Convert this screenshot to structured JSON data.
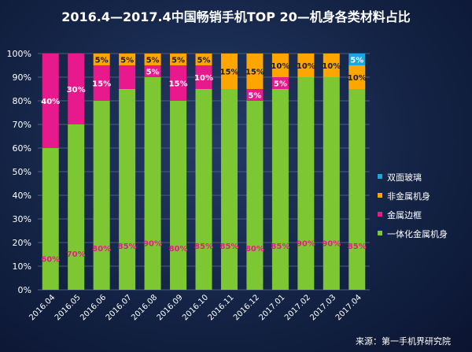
{
  "colors": {
    "双面玻璃": "#1aa6e0",
    "非金属机身": "#ffa500",
    "金属边框": "#e8198c",
    "一体化金属机身": "#7dc832",
    "gridline": "#4a5c82"
  },
  "chart_data": {
    "type": "bar",
    "stacked": true,
    "title": "2016.4—2017.4中国畅销手机TOP 20—机身各类材料占比",
    "categories": [
      "2016.04",
      "2016.05",
      "2016.06",
      "2016.07",
      "2016.08",
      "2016.09",
      "2016.10",
      "2016.11",
      "2016.12",
      "2017.01",
      "2017.02",
      "2017.03",
      "2017.04"
    ],
    "series": [
      {
        "name": "一体化金属机身",
        "values": [
          60,
          70,
          80,
          85,
          90,
          80,
          85,
          85,
          80,
          85,
          90,
          90,
          85
        ],
        "labels": [
          "60%",
          "70%",
          "80%",
          "85%",
          "90%",
          "80%",
          "85%",
          "85%",
          "80%",
          "85%",
          "90%",
          "90%",
          "85%"
        ]
      },
      {
        "name": "金属边框",
        "values": [
          40,
          30,
          15,
          10,
          5,
          15,
          10,
          0,
          5,
          5,
          0,
          0,
          0
        ],
        "labels": [
          "40%",
          "30%",
          "15%",
          "",
          "5%",
          "15%",
          "10%",
          "",
          "5%",
          "5%",
          "",
          "",
          ""
        ]
      },
      {
        "name": "非金属机身",
        "values": [
          0,
          0,
          5,
          5,
          5,
          5,
          5,
          15,
          15,
          10,
          10,
          10,
          10
        ],
        "labels": [
          "",
          "",
          "5%",
          "5%",
          "5%",
          "5%",
          "5%",
          "15%",
          "15%",
          "10%",
          "10%",
          "10%",
          "10%"
        ]
      },
      {
        "name": "双面玻璃",
        "values": [
          0,
          0,
          0,
          0,
          0,
          0,
          0,
          0,
          0,
          0,
          0,
          0,
          5
        ],
        "labels": [
          "",
          "",
          "",
          "",
          "",
          "",
          "",
          "",
          "",
          "",
          "",
          "",
          "5%"
        ]
      }
    ],
    "yticks": [
      "0%",
      "10%",
      "20%",
      "30%",
      "40%",
      "50%",
      "60%",
      "70%",
      "80%",
      "90%",
      "100%"
    ],
    "ylim": [
      0,
      100
    ],
    "legend": [
      "双面玻璃",
      "非金属机身",
      "金属边框",
      "一体化金属机身"
    ],
    "legend_position": "right",
    "grid": true
  },
  "source": "来源：第一手机界研究院"
}
